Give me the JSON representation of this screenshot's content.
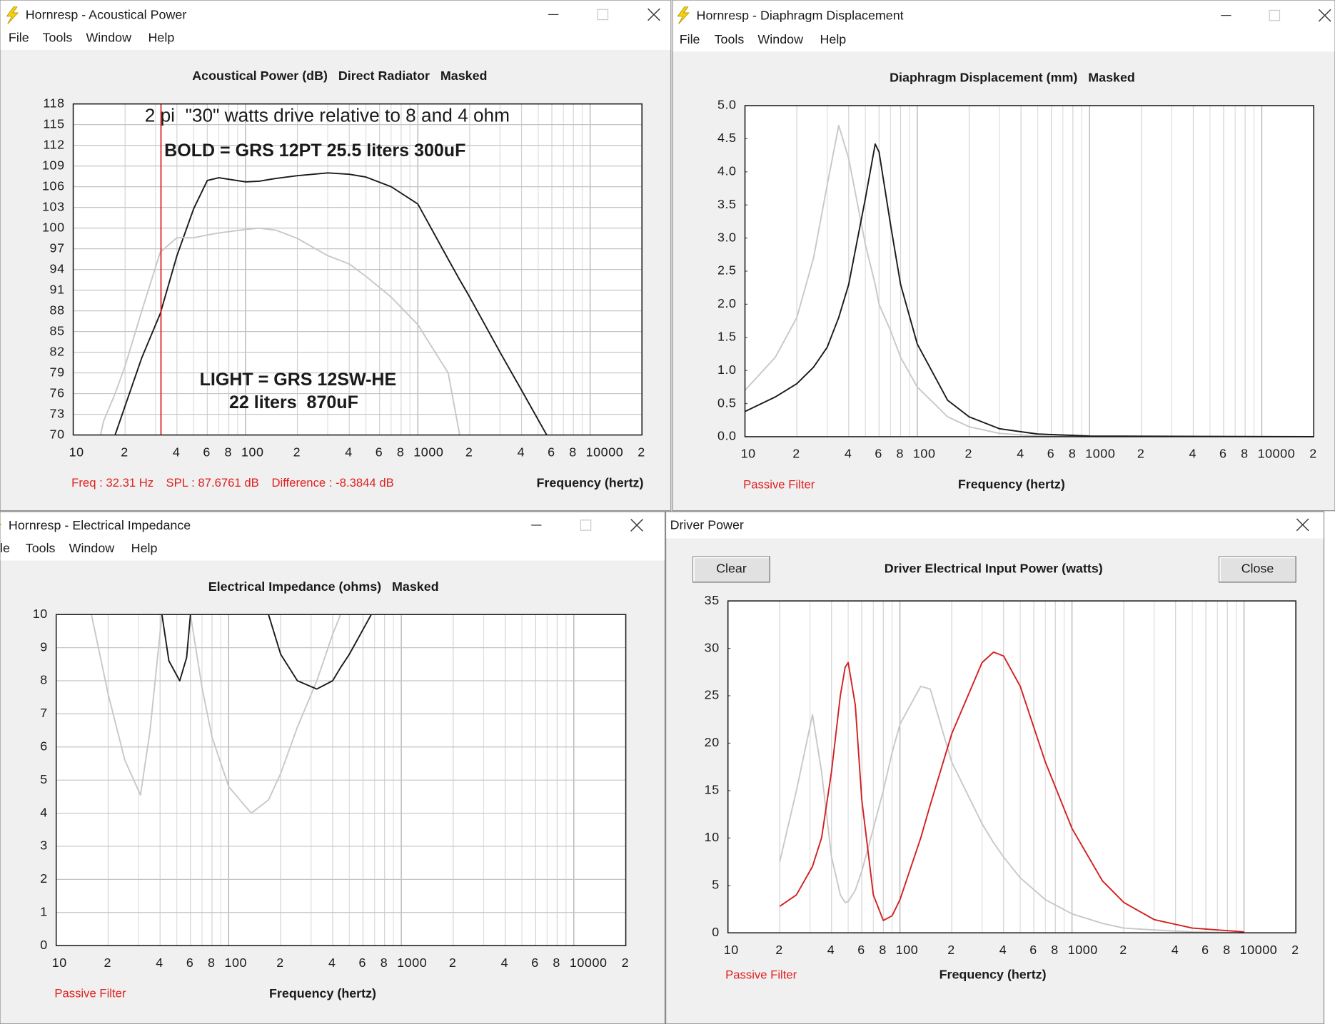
{
  "windows": [
    {
      "title": "Hornresp - Acoustical Power",
      "menu": [
        "File",
        "Tools",
        "Window",
        "Help"
      ],
      "status": [
        "Freq : 32.31 Hz",
        "SPL : 87.6761 dB",
        "Difference : -8.3844 dB"
      ]
    },
    {
      "title": "Hornresp - Diaphragm Displacement",
      "menu": [
        "File",
        "Tools",
        "Window",
        "Help"
      ],
      "status": [
        "Passive Filter"
      ]
    },
    {
      "title": "Hornresp - Electrical Impedance",
      "menu": [
        "le",
        "Tools",
        "Window",
        "Help"
      ],
      "status": [
        "Passive Filter"
      ]
    },
    {
      "title": "Driver Power",
      "buttons": [
        "Clear",
        "Close"
      ],
      "status": [
        "Passive Filter"
      ]
    }
  ],
  "chart_data": [
    {
      "type": "line",
      "title": "Acoustical Power (dB)   Direct Radiator   Masked",
      "x_label": "Frequency (hertz)",
      "log_x": true,
      "ygrid": true,
      "annotations": [
        "2 pi  \"30\" watts drive relative to 8 and 4 ohm",
        "BOLD = GRS 12PT 25.5 liters 300uF",
        "LIGHT = GRS 12SW-HE",
        "22 liters  870uF"
      ],
      "cursor": {
        "x": 32.31,
        "color": "#e02020"
      },
      "xlim": [
        10,
        20000
      ],
      "xticks": [
        10,
        {
          "value": 20,
          "label": "2"
        },
        {
          "value": 40,
          "label": "4"
        },
        {
          "value": 60,
          "label": "6"
        },
        {
          "value": 80,
          "label": "8"
        },
        100,
        {
          "value": 200,
          "label": "2"
        },
        {
          "value": 400,
          "label": "4"
        },
        {
          "value": 600,
          "label": "6"
        },
        {
          "value": 800,
          "label": "8"
        },
        1000,
        {
          "value": 2000,
          "label": "2"
        },
        {
          "value": 4000,
          "label": "4"
        },
        {
          "value": 6000,
          "label": "6"
        },
        {
          "value": 8000,
          "label": "8"
        },
        10000,
        {
          "value": 20000,
          "label": "2"
        }
      ],
      "xminor": [
        30,
        50,
        70,
        90,
        300,
        500,
        700,
        900,
        3000,
        5000,
        7000,
        9000
      ],
      "ylim": [
        70,
        118
      ],
      "yticks": [
        70,
        73,
        76,
        79,
        82,
        85,
        88,
        91,
        94,
        97,
        100,
        103,
        106,
        109,
        112,
        115,
        118
      ],
      "x": [
        14.4,
        15,
        17.5,
        20,
        25,
        32,
        40,
        50,
        60,
        70,
        100,
        120,
        150,
        200,
        300,
        400,
        500,
        700,
        1000,
        1500,
        1750,
        2000,
        3000,
        4000,
        5600
      ],
      "series": [
        {
          "color": "#1a1a1a",
          "values": [
            null,
            null,
            70,
            74.2,
            81.2,
            87.6,
            96,
            102.8,
            106.9,
            107.3,
            106.7,
            106.8,
            107.2,
            107.6,
            108,
            107.8,
            107.4,
            106,
            103.5,
            95.5,
            92.5,
            90,
            82,
            76.5,
            70
          ]
        },
        {
          "color": "#c8c8c8",
          "values": [
            70,
            72,
            76,
            80,
            88,
            96.5,
            98.6,
            98.6,
            99,
            99.3,
            99.8,
            100,
            99.7,
            98.5,
            96,
            94.8,
            93,
            90,
            86,
            79,
            70,
            null,
            null,
            null,
            null
          ]
        }
      ]
    },
    {
      "type": "line",
      "title": "Diaphragm Displacement (mm)   Masked",
      "x_label": "Frequency (hertz)",
      "log_x": true,
      "ygrid": false,
      "xlim": [
        10,
        20000
      ],
      "xticks": [
        10,
        {
          "value": 20,
          "label": "2"
        },
        {
          "value": 40,
          "label": "4"
        },
        {
          "value": 60,
          "label": "6"
        },
        {
          "value": 80,
          "label": "8"
        },
        100,
        {
          "value": 200,
          "label": "2"
        },
        {
          "value": 400,
          "label": "4"
        },
        {
          "value": 600,
          "label": "6"
        },
        {
          "value": 800,
          "label": "8"
        },
        1000,
        {
          "value": 2000,
          "label": "2"
        },
        {
          "value": 4000,
          "label": "4"
        },
        {
          "value": 6000,
          "label": "6"
        },
        {
          "value": 8000,
          "label": "8"
        },
        10000,
        {
          "value": 20000,
          "label": "2"
        }
      ],
      "xminor": [
        30,
        50,
        70,
        90,
        300,
        500,
        700,
        900,
        3000,
        5000,
        7000,
        9000
      ],
      "ylim": [
        0,
        5
      ],
      "yticks": [
        {
          "value": 0,
          "label": "0.0"
        },
        0.5,
        {
          "value": 1,
          "label": "1.0"
        },
        1.5,
        {
          "value": 2,
          "label": "2.0"
        },
        2.5,
        {
          "value": 3,
          "label": "3.0"
        },
        3.5,
        {
          "value": 4,
          "label": "4.0"
        },
        4.5,
        {
          "value": 5,
          "label": "5.0"
        }
      ],
      "x": [
        10,
        15,
        20,
        25,
        30,
        35,
        40,
        50,
        57,
        60,
        70,
        80,
        100,
        150,
        200,
        300,
        500,
        1000,
        20000
      ],
      "series": [
        {
          "color": "#c8c8c8",
          "values": [
            0.7,
            1.2,
            1.8,
            2.7,
            3.8,
            4.7,
            4.2,
            2.9,
            2.3,
            2.0,
            1.6,
            1.2,
            0.75,
            0.3,
            0.15,
            0.05,
            0.01,
            0,
            0
          ]
        },
        {
          "color": "#1a1a1a",
          "values": [
            0.38,
            0.6,
            0.8,
            1.05,
            1.35,
            1.8,
            2.3,
            3.6,
            4.42,
            4.3,
            3.2,
            2.3,
            1.4,
            0.55,
            0.3,
            0.12,
            0.04,
            0.01,
            0
          ]
        }
      ]
    },
    {
      "type": "line",
      "title": "Electrical Impedance (ohms)   Masked",
      "x_label": "Frequency (hertz)",
      "log_x": true,
      "ygrid": true,
      "xlim": [
        10,
        20000
      ],
      "xticks": [
        10,
        {
          "value": 20,
          "label": "2"
        },
        {
          "value": 40,
          "label": "4"
        },
        {
          "value": 60,
          "label": "6"
        },
        {
          "value": 80,
          "label": "8"
        },
        100,
        {
          "value": 200,
          "label": "2"
        },
        {
          "value": 400,
          "label": "4"
        },
        {
          "value": 600,
          "label": "6"
        },
        {
          "value": 800,
          "label": "8"
        },
        1000,
        {
          "value": 2000,
          "label": "2"
        },
        {
          "value": 4000,
          "label": "4"
        },
        {
          "value": 6000,
          "label": "6"
        },
        {
          "value": 8000,
          "label": "8"
        },
        10000,
        {
          "value": 20000,
          "label": "2"
        }
      ],
      "xminor": [
        30,
        50,
        70,
        90,
        300,
        500,
        700,
        900,
        3000,
        5000,
        7000,
        9000
      ],
      "ylim": [
        0,
        10
      ],
      "yticks": [
        0,
        1,
        2,
        3,
        4,
        5,
        6,
        7,
        8,
        9,
        10
      ],
      "x": [
        16,
        20,
        25,
        30.8,
        35,
        41,
        45,
        52,
        57,
        60,
        70,
        80,
        100,
        135,
        170,
        200,
        250,
        324,
        400,
        445,
        500,
        670
      ],
      "series": [
        {
          "color": "#c8c8c8",
          "values": [
            10,
            7.6,
            5.6,
            4.55,
            6.5,
            10,
            null,
            null,
            null,
            10,
            7.8,
            6.3,
            4.8,
            4.0,
            4.4,
            5.2,
            6.6,
            8.0,
            9.4,
            10,
            null,
            null
          ]
        },
        {
          "color": "#1a1a1a",
          "values": [
            null,
            null,
            null,
            null,
            null,
            10,
            8.6,
            8.0,
            8.7,
            10,
            null,
            null,
            null,
            null,
            10,
            8.8,
            8.0,
            7.75,
            8.0,
            8.4,
            8.8,
            10
          ]
        }
      ]
    },
    {
      "type": "line",
      "title": "Driver Electrical Input Power (watts)",
      "x_label": "Frequency (hertz)",
      "log_x": true,
      "ygrid": false,
      "xlim": [
        10,
        20000
      ],
      "xticks": [
        10,
        {
          "value": 20,
          "label": "2"
        },
        {
          "value": 40,
          "label": "4"
        },
        {
          "value": 60,
          "label": "6"
        },
        {
          "value": 80,
          "label": "8"
        },
        100,
        {
          "value": 200,
          "label": "2"
        },
        {
          "value": 400,
          "label": "4"
        },
        {
          "value": 600,
          "label": "6"
        },
        {
          "value": 800,
          "label": "8"
        },
        1000,
        {
          "value": 2000,
          "label": "2"
        },
        {
          "value": 4000,
          "label": "4"
        },
        {
          "value": 6000,
          "label": "6"
        },
        {
          "value": 8000,
          "label": "8"
        },
        10000,
        {
          "value": 20000,
          "label": "2"
        }
      ],
      "xminor": [
        30,
        50,
        70,
        90,
        300,
        500,
        700,
        900,
        3000,
        5000,
        7000,
        9000
      ],
      "ylim": [
        0,
        35
      ],
      "yticks": [
        0,
        5,
        10,
        15,
        20,
        25,
        30,
        35
      ],
      "x": [
        20,
        25,
        31,
        35,
        40,
        45,
        48,
        50,
        55,
        60,
        70,
        80,
        90,
        100,
        132,
        150,
        200,
        300,
        350,
        400,
        500,
        700,
        1000,
        1500,
        2000,
        3000,
        5000,
        10000
      ],
      "series": [
        {
          "color": "#c8c8c8",
          "values": [
            7.5,
            15,
            23,
            17,
            8,
            4,
            3.2,
            3.3,
            4.5,
            6.5,
            11,
            15,
            19,
            22,
            26,
            25.7,
            18,
            11.5,
            9.5,
            8,
            5.8,
            3.5,
            2,
            1,
            0.5,
            0.3,
            0.1,
            0
          ]
        },
        {
          "color": "#d42020",
          "values": [
            2.8,
            4,
            7,
            10,
            17,
            25,
            28,
            28.5,
            24,
            14,
            4,
            1.3,
            1.8,
            3.5,
            10,
            13.5,
            21,
            28.5,
            29.6,
            29.2,
            26,
            18,
            11,
            5.5,
            3.2,
            1.4,
            0.5,
            0.1
          ]
        }
      ]
    }
  ]
}
